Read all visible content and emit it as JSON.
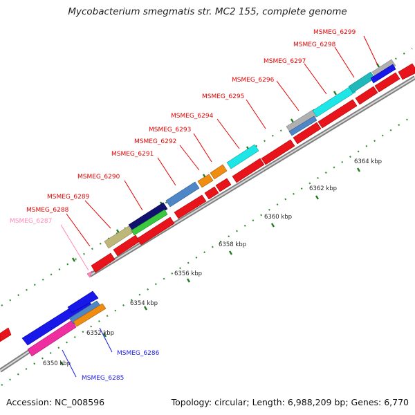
{
  "title": "Mycobacterium smegmatis str. MC2 155, complete genome",
  "footer": {
    "accession": "Accession: NC_008596",
    "summary": "Topology: circular; Length: 6,988,209 bp; Genes: 6,770"
  },
  "colors": {
    "backbone": "#9a9a9a",
    "tick": "#2e8b2e",
    "gene_label_red": "#e00000",
    "gene_label_pink": "#ff88bb",
    "gene_label_blue": "#1a1ae6"
  },
  "scale_labels": [
    "6350 kbp",
    "6352 kbp",
    "6354 kbp",
    "6356 kbp",
    "6358 kbp",
    "6360 kbp",
    "6362 kbp",
    "6364 kbp"
  ],
  "gene_labels": [
    "MSMEG_6285",
    "MSMEG_6286",
    "MSMEG_6287",
    "MSMEG_6288",
    "MSMEG_6289",
    "MSMEG_6290",
    "MSMEG_6291",
    "MSMEG_6292",
    "MSMEG_6293",
    "MSMEG_6294",
    "MSMEG_6295",
    "MSMEG_6296",
    "MSMEG_6297",
    "MSMEG_6298",
    "MSMEG_6299"
  ]
}
